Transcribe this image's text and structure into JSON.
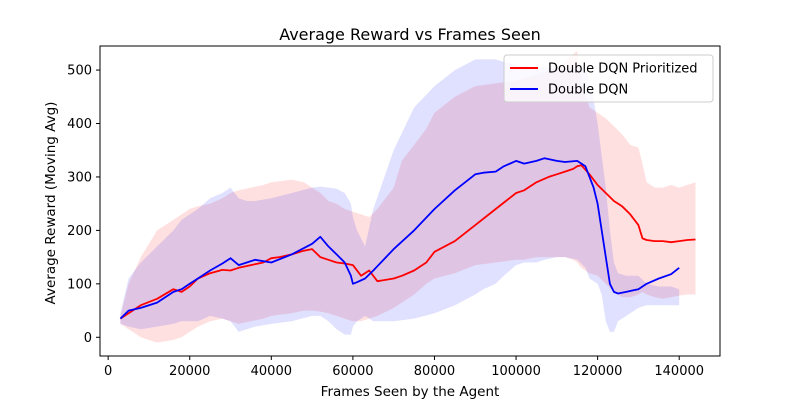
{
  "chart_data": {
    "type": "line",
    "title": "Average Reward vs Frames Seen",
    "xlabel": "Frames Seen by the Agent",
    "ylabel": "Average Reward (Moving Avg)",
    "xlim": [
      -2000,
      150000
    ],
    "ylim": [
      -35,
      545
    ],
    "xticks": [
      0,
      20000,
      40000,
      60000,
      80000,
      100000,
      120000,
      140000
    ],
    "xtick_labels": [
      "0",
      "20000",
      "40000",
      "60000",
      "80000",
      "100000",
      "120000",
      "140000"
    ],
    "yticks": [
      0,
      100,
      200,
      300,
      400,
      500
    ],
    "ytick_labels": [
      "0",
      "100",
      "200",
      "300",
      "400",
      "500"
    ],
    "grid": false,
    "legend_position": "top-right",
    "series": [
      {
        "name": "Double DQN Prioritized",
        "color": "#ff0000",
        "band_color": "#ff0000",
        "x": [
          3000,
          5000,
          8000,
          12000,
          16000,
          18000,
          20000,
          22000,
          25000,
          28000,
          30000,
          32000,
          35000,
          38000,
          40000,
          42000,
          45000,
          48000,
          50000,
          52000,
          54000,
          56000,
          58000,
          60000,
          62000,
          64000,
          66000,
          70000,
          72000,
          75000,
          78000,
          80000,
          85000,
          90000,
          95000,
          100000,
          102000,
          105000,
          108000,
          110000,
          112000,
          114000,
          115000,
          116000,
          118000,
          120000,
          122000,
          124000,
          126000,
          128000,
          130000,
          131000,
          132000,
          134000,
          136000,
          138000,
          140000,
          142000,
          144000
        ],
        "y": [
          35,
          45,
          60,
          72,
          90,
          85,
          95,
          110,
          120,
          126,
          125,
          130,
          135,
          140,
          148,
          150,
          155,
          162,
          165,
          150,
          145,
          140,
          138,
          135,
          115,
          125,
          105,
          110,
          115,
          125,
          140,
          160,
          180,
          210,
          240,
          270,
          275,
          290,
          300,
          305,
          310,
          315,
          320,
          322,
          305,
          285,
          270,
          255,
          245,
          230,
          210,
          185,
          182,
          180,
          180,
          178,
          180,
          182,
          183
        ],
        "upper": [
          40,
          100,
          150,
          200,
          220,
          230,
          240,
          245,
          250,
          260,
          270,
          275,
          280,
          285,
          290,
          292,
          295,
          290,
          280,
          270,
          255,
          250,
          240,
          235,
          230,
          225,
          240,
          280,
          330,
          360,
          390,
          420,
          450,
          470,
          475,
          480,
          485,
          490,
          500,
          505,
          515,
          530,
          535,
          480,
          430,
          420,
          410,
          395,
          380,
          360,
          355,
          325,
          290,
          280,
          280,
          285,
          280,
          285,
          290
        ],
        "lower": [
          25,
          15,
          0,
          -10,
          -5,
          0,
          10,
          20,
          30,
          35,
          30,
          25,
          30,
          35,
          40,
          42,
          45,
          50,
          50,
          48,
          45,
          40,
          35,
          30,
          30,
          35,
          40,
          55,
          65,
          80,
          100,
          110,
          120,
          135,
          140,
          145,
          145,
          150,
          150,
          150,
          150,
          145,
          140,
          130,
          120,
          115,
          100,
          85,
          75,
          75,
          80,
          85,
          80,
          75,
          72,
          75,
          78,
          80,
          80
        ]
      },
      {
        "name": "Double DQN",
        "color": "#0000ff",
        "band_color": "#0000ff",
        "x": [
          3000,
          5000,
          8000,
          12000,
          16000,
          18000,
          20000,
          22000,
          25000,
          28000,
          30000,
          32000,
          34000,
          36000,
          40000,
          45000,
          50000,
          52000,
          54000,
          56000,
          58000,
          59500,
          60000,
          61000,
          63000,
          65000,
          70000,
          75000,
          80000,
          85000,
          90000,
          92000,
          95000,
          97000,
          100000,
          102000,
          105000,
          107000,
          110000,
          112000,
          115000,
          117000,
          118000,
          119000,
          120000,
          121000,
          122000,
          123000,
          124000,
          125000,
          127000,
          130000,
          132000,
          135000,
          138000,
          140000
        ],
        "y": [
          35,
          50,
          55,
          65,
          85,
          90,
          100,
          110,
          125,
          138,
          148,
          135,
          140,
          145,
          140,
          155,
          175,
          188,
          170,
          155,
          140,
          115,
          100,
          103,
          110,
          125,
          165,
          200,
          240,
          275,
          305,
          308,
          310,
          320,
          330,
          325,
          330,
          335,
          330,
          328,
          330,
          320,
          300,
          280,
          250,
          200,
          150,
          100,
          85,
          82,
          85,
          90,
          100,
          110,
          118,
          130
        ],
        "upper": [
          45,
          110,
          140,
          170,
          200,
          220,
          230,
          240,
          260,
          270,
          280,
          260,
          255,
          255,
          260,
          270,
          280,
          282,
          280,
          278,
          270,
          250,
          225,
          200,
          170,
          240,
          350,
          430,
          470,
          500,
          520,
          520,
          520,
          515,
          510,
          508,
          505,
          505,
          505,
          505,
          505,
          505,
          480,
          445,
          400,
          340,
          280,
          200,
          140,
          120,
          115,
          115,
          100,
          95,
          95,
          90
        ],
        "lower": [
          25,
          20,
          15,
          20,
          25,
          30,
          30,
          30,
          40,
          35,
          30,
          10,
          15,
          20,
          25,
          30,
          40,
          40,
          30,
          15,
          5,
          5,
          20,
          30,
          40,
          30,
          30,
          35,
          45,
          60,
          80,
          90,
          100,
          115,
          135,
          140,
          140,
          145,
          150,
          150,
          145,
          130,
          110,
          105,
          100,
          80,
          30,
          10,
          10,
          30,
          40,
          55,
          60,
          60,
          60,
          60
        ]
      }
    ]
  }
}
